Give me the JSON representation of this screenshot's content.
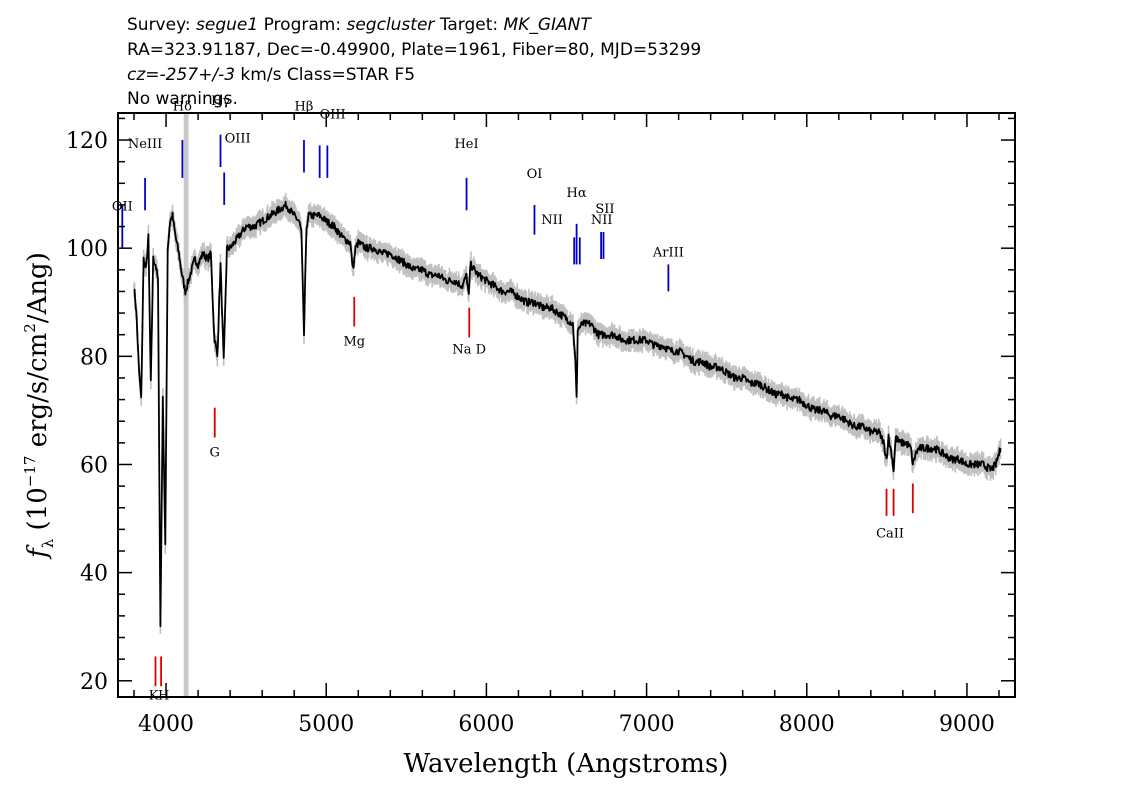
{
  "header": {
    "line1": {
      "survey_label": "Survey:",
      "survey": "segue1",
      "program_label": "Program:",
      "program": "segcluster",
      "target_label": "Target:",
      "target": "MK_GIANT"
    },
    "line2": "RA=323.91187, Dec=-0.49900, Plate=1961, Fiber=80, MJD=53299",
    "line3": {
      "cz": "cz=-257+/-3",
      "rest": " km/s Class=STAR F5"
    },
    "line4": "No warnings."
  },
  "chart_data": {
    "type": "line",
    "xlabel": "Wavelength (Angstroms)",
    "ylabel": "f_λ (10^-17 erg/s/cm^2/Ang)",
    "ylabel_parts": {
      "f": "f",
      "lambda_sub": "λ",
      "open": " (10",
      "exp1": "−17",
      "mid": " erg/s/cm",
      "exp2": "2",
      "close": "/Ang)"
    },
    "xlim": [
      3700,
      9300
    ],
    "ylim": [
      17,
      125
    ],
    "x_ticks": [
      4000,
      5000,
      6000,
      7000,
      8000,
      9000
    ],
    "y_ticks": [
      20,
      40,
      60,
      80,
      100,
      120
    ],
    "masked_region": [
      4110,
      4140
    ],
    "colors": {
      "spectrum": "#000000",
      "error_band": "#c0c0c0",
      "mask": "#c8c8c8",
      "emission": "#0000cc",
      "absorption": "#dd0000"
    },
    "series": [
      {
        "values_x": [
          3800,
          3815,
          3830,
          3845,
          3860,
          3875,
          3890,
          3905,
          3920,
          3935,
          3950,
          3965,
          3980,
          3995,
          4010,
          4025,
          4040,
          4060,
          4080,
          4100,
          4120,
          4150,
          4180,
          4200,
          4230,
          4260,
          4280,
          4300,
          4320,
          4340,
          4360,
          4380,
          4400,
          4450,
          4500,
          4550,
          4600,
          4650,
          4700,
          4750,
          4800,
          4830,
          4845,
          4861,
          4877,
          4890,
          4920,
          4960,
          5000,
          5050,
          5100,
          5150,
          5167,
          5183,
          5200,
          5250,
          5300,
          5350,
          5400,
          5450,
          5500,
          5550,
          5600,
          5650,
          5700,
          5750,
          5800,
          5850,
          5876,
          5890,
          5900,
          5950,
          6000,
          6050,
          6100,
          6150,
          6200,
          6250,
          6300,
          6350,
          6400,
          6450,
          6500,
          6540,
          6555,
          6563,
          6570,
          6600,
          6650,
          6700,
          6750,
          6800,
          6850,
          6900,
          6950,
          7000,
          7050,
          7100,
          7150,
          7200,
          7250,
          7300,
          7350,
          7400,
          7450,
          7500,
          7550,
          7600,
          7650,
          7700,
          7750,
          7800,
          7850,
          7900,
          7950,
          8000,
          8050,
          8100,
          8150,
          8200,
          8250,
          8300,
          8350,
          8400,
          8450,
          8480,
          8498,
          8510,
          8530,
          8542,
          8555,
          8580,
          8620,
          8650,
          8662,
          8680,
          8700,
          8750,
          8800,
          8850,
          8900,
          8950,
          9000,
          9050,
          9100,
          9150,
          9180,
          9200,
          9210
        ],
        "values_y": [
          93,
          88,
          78,
          72,
          98,
          96,
          102,
          75,
          98,
          97,
          94,
          30,
          72,
          45,
          100,
          105,
          106,
          102,
          99,
          95,
          92,
          95,
          98,
          97,
          99,
          98,
          99,
          84,
          80,
          97,
          79,
          100,
          100,
          102,
          104,
          104,
          105,
          106,
          107,
          108,
          106,
          105,
          103,
          84,
          104,
          106,
          106,
          106,
          105,
          104,
          102,
          101,
          96,
          100,
          101,
          100,
          100,
          99,
          99,
          98,
          97,
          96,
          96,
          95,
          95,
          94,
          94,
          93,
          95,
          91,
          97,
          95,
          94,
          93,
          92,
          92,
          91,
          90,
          90,
          89,
          89,
          88,
          87,
          86,
          79,
          72,
          85,
          86,
          86,
          84,
          84,
          84,
          83,
          83,
          83,
          83,
          82,
          82,
          81,
          81,
          80,
          79,
          79,
          78,
          78,
          77,
          76,
          76,
          75,
          75,
          74,
          73,
          73,
          72,
          72,
          71,
          70,
          70,
          69,
          69,
          68,
          67,
          67,
          66,
          66,
          64,
          61,
          65,
          62,
          59,
          65,
          64,
          64,
          63,
          60,
          62,
          63,
          63,
          63,
          62,
          61,
          61,
          60,
          60,
          60,
          59,
          60,
          62,
          63
        ]
      }
    ],
    "emission_lines": [
      {
        "label": "OII",
        "x": 3727,
        "y_top": 108,
        "y_bot": 100,
        "lx": 3727,
        "ly": 107
      },
      {
        "label": "NeIII",
        "x": 3869,
        "y_top": 113,
        "y_bot": 107,
        "lx": 3869,
        "ly": 118.5
      },
      {
        "label": "Hδ",
        "x": 4102,
        "y_top": 120,
        "y_bot": 113,
        "lx": 4102,
        "ly": 125.5
      },
      {
        "label": "Hγ",
        "x": 4340,
        "y_top": 121,
        "y_bot": 115,
        "lx": 4340,
        "ly": 126.5
      },
      {
        "label": "OIII",
        "x": 4363,
        "y_top": 114,
        "y_bot": 108,
        "lx": 4447,
        "ly": 119.5
      },
      {
        "label": "Hβ",
        "x": 4861,
        "y_top": 120,
        "y_bot": 114,
        "lx": 4861,
        "ly": 125.5
      },
      {
        "label": "OIII",
        "x": 4959,
        "y_top": 119,
        "y_bot": 113,
        "lx": 5040,
        "ly": 124
      },
      {
        "label": "OIII",
        "x": 5007,
        "y_top": 119,
        "y_bot": 113,
        "lx": 5007,
        "ly": -999
      },
      {
        "label": "HeI",
        "x": 5876,
        "y_top": 113,
        "y_bot": 107,
        "lx": 5876,
        "ly": 118.5
      },
      {
        "label": "OI",
        "x": 6300,
        "y_top": 108,
        "y_bot": 102.5,
        "lx": 6300,
        "ly": 113
      },
      {
        "label": "NII",
        "x": 6548,
        "y_top": 102,
        "y_bot": 97,
        "lx": 6410,
        "ly": 104.5
      },
      {
        "label": "Hα",
        "x": 6563,
        "y_top": 104.5,
        "y_bot": 97,
        "lx": 6563,
        "ly": 109.5
      },
      {
        "label": "NII",
        "x": 6583,
        "y_top": 102,
        "y_bot": 97,
        "lx": 6583,
        "ly": -999
      },
      {
        "label": "SII",
        "x": 6716,
        "y_top": 103,
        "y_bot": 98,
        "lx": 6740,
        "ly": 106.5
      },
      {
        "label": "NII",
        "x": 6731,
        "y_top": 103,
        "y_bot": 98,
        "lx": 6720,
        "ly": 104.5
      },
      {
        "label": "ArIII",
        "x": 7136,
        "y_top": 97,
        "y_bot": 92,
        "lx": 7136,
        "ly": 98.5
      }
    ],
    "absorption_lines": [
      {
        "label": "K",
        "x": 3934,
        "y_top": 24.5,
        "y_bot": 19,
        "lx": 3922,
        "ly": 16.5
      },
      {
        "label": "H",
        "x": 3969,
        "y_top": 24.5,
        "y_bot": 19,
        "lx": 3985,
        "ly": 16.5
      },
      {
        "label": "G",
        "x": 4304,
        "y_top": 70.5,
        "y_bot": 65,
        "lx": 4304,
        "ly": 61.5
      },
      {
        "label": "Mg",
        "x": 5175,
        "y_top": 91,
        "y_bot": 85.5,
        "lx": 5175,
        "ly": 82
      },
      {
        "label": "Na D",
        "x": 5893,
        "y_top": 89,
        "y_bot": 83.5,
        "lx": 5893,
        "ly": 80.5
      },
      {
        "label": "CaII",
        "x": 8498,
        "y_top": 55.5,
        "y_bot": 50.5,
        "lx": 8520,
        "ly": 46.5
      },
      {
        "label": "CaII",
        "x": 8542,
        "y_top": 55.5,
        "y_bot": 50.5,
        "lx": 8542,
        "ly": -999
      },
      {
        "label": "CaII",
        "x": 8662,
        "y_top": 56.5,
        "y_bot": 51,
        "lx": 8662,
        "ly": -999
      }
    ]
  }
}
